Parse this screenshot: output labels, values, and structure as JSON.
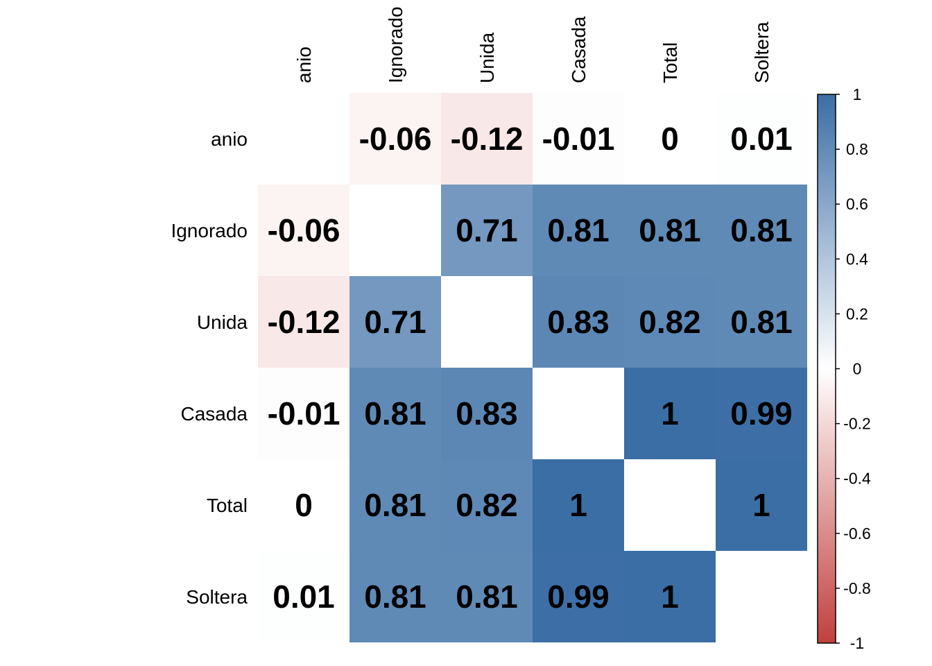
{
  "chart_data": {
    "type": "heatmap",
    "title": "",
    "variables": [
      "anio",
      "Ignorado",
      "Unida",
      "Casada",
      "Total",
      "Soltera"
    ],
    "matrix": [
      [
        null,
        -0.06,
        -0.12,
        -0.01,
        0,
        0.01
      ],
      [
        -0.06,
        null,
        0.71,
        0.81,
        0.81,
        0.81
      ],
      [
        -0.12,
        0.71,
        null,
        0.83,
        0.82,
        0.81
      ],
      [
        -0.01,
        0.81,
        0.83,
        null,
        1,
        0.99
      ],
      [
        0,
        0.81,
        0.82,
        1,
        null,
        1
      ],
      [
        0.01,
        0.81,
        0.81,
        0.99,
        1,
        null
      ]
    ],
    "labels": [
      [
        null,
        "-0.06",
        "-0.12",
        "-0.01",
        "0",
        "0.01"
      ],
      [
        "-0.06",
        null,
        "0.71",
        "0.81",
        "0.81",
        "0.81"
      ],
      [
        "-0.12",
        "0.71",
        null,
        "0.83",
        "0.82",
        "0.81"
      ],
      [
        "-0.01",
        "0.81",
        "0.83",
        null,
        "1",
        "0.99"
      ],
      [
        "0",
        "0.81",
        "0.82",
        "1",
        null,
        "1"
      ],
      [
        "0.01",
        "0.81",
        "0.81",
        "0.99",
        "1",
        null
      ]
    ],
    "colorbar": {
      "range": [
        -1,
        1
      ],
      "ticks": [
        "1",
        "0.8",
        "0.6",
        "0.4",
        "0.2",
        "0",
        "-0.2",
        "-0.4",
        "-0.6",
        "-0.8",
        "-1"
      ],
      "colors": {
        "negative": "#c1403d",
        "zero": "#ffffff",
        "positive": "#3b6ea5"
      }
    },
    "grid": false,
    "legend_position": "right"
  }
}
